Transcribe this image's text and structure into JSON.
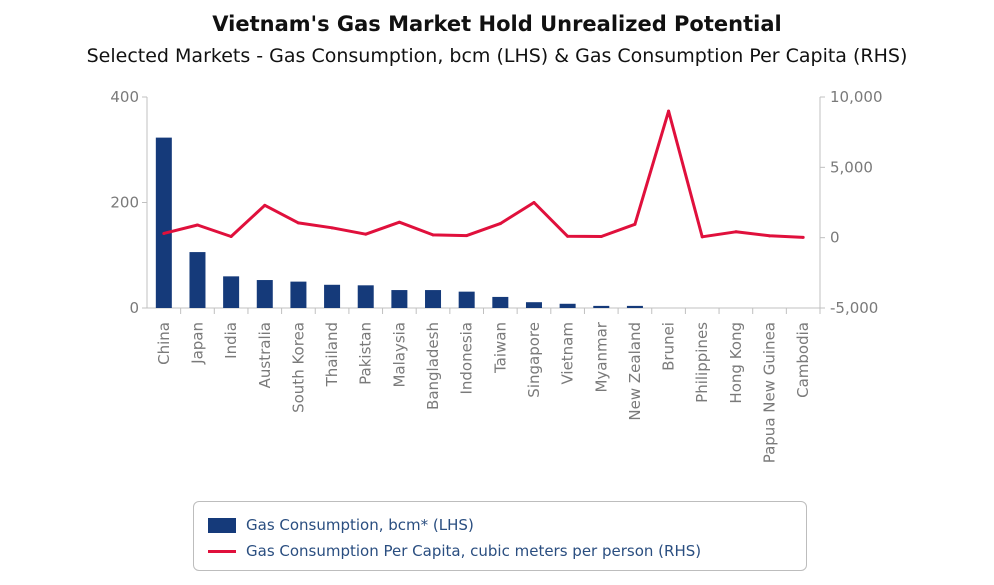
{
  "chart_data": {
    "type": "bar",
    "title": "Vietnam's Gas Market Hold Unrealized Potential",
    "subtitle": "Selected Markets - Gas Consumption, bcm (LHS) & Gas Consumption Per Capita (RHS)",
    "categories": [
      "China",
      "Japan",
      "India",
      "Australia",
      "South Korea",
      "Thailand",
      "Pakistan",
      "Malaysia",
      "Bangladesh",
      "Indonesia",
      "Taiwan",
      "Singapore",
      "Vietnam",
      "Myanmar",
      "New Zealand",
      "Brunei",
      "Philippines",
      "Hong Kong",
      "Papua New Guinea",
      "Cambodia"
    ],
    "series": [
      {
        "name": "Gas Consumption, bcm* (LHS)",
        "type": "bar",
        "axis": "left",
        "color": "#153a7a",
        "values": [
          323,
          106,
          60,
          53,
          50,
          44,
          43,
          34,
          34,
          31,
          21,
          11,
          8,
          4,
          4,
          0,
          0,
          0,
          0,
          0
        ]
      },
      {
        "name": "Gas Consumption Per Capita, cubic meters per person (RHS)",
        "type": "line",
        "axis": "right",
        "color": "#e0103c",
        "values": [
          300,
          900,
          80,
          2300,
          1050,
          700,
          250,
          1100,
          200,
          150,
          1000,
          2500,
          100,
          80,
          950,
          9000,
          60,
          420,
          130,
          20
        ]
      }
    ],
    "y_left": {
      "ylim": [
        0,
        400
      ],
      "ticks": [
        0,
        200,
        400
      ],
      "tick_labels": [
        "0",
        "200",
        "400"
      ]
    },
    "y_right": {
      "ylim": [
        -5000,
        10000
      ],
      "ticks": [
        -5000,
        0,
        5000,
        10000
      ],
      "tick_labels": [
        "-5,000",
        "0",
        "5,000",
        "10,000"
      ]
    },
    "grid": false,
    "legend_position": "bottom"
  }
}
